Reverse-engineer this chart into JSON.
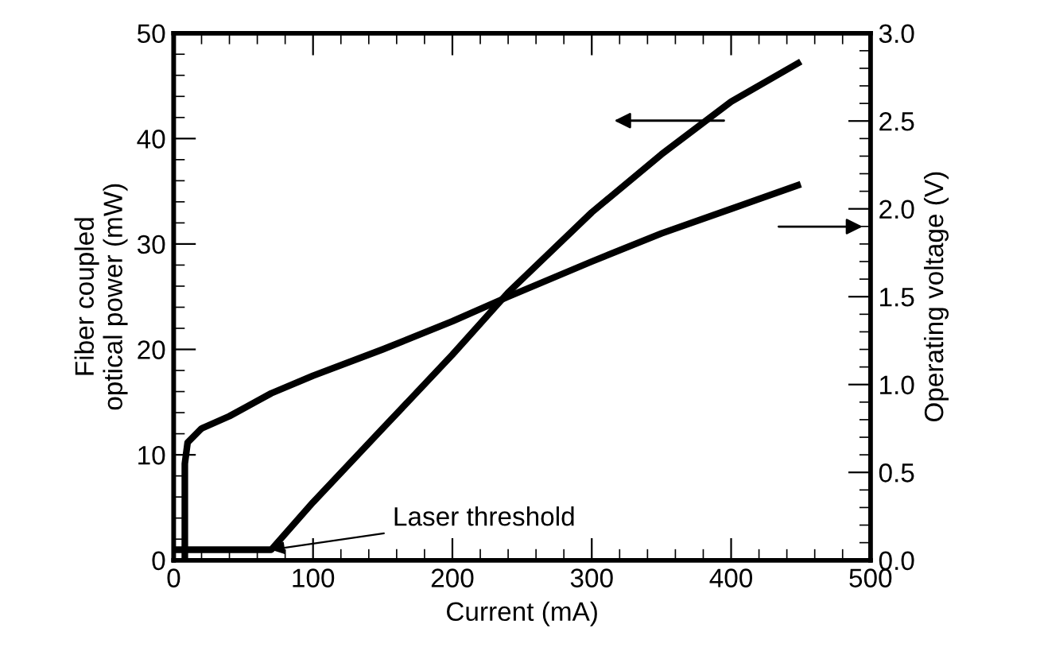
{
  "chart_data": {
    "type": "line",
    "xlabel": "Current (mA)",
    "ylabel": "Fiber coupled\noptical power (mW)",
    "y2label": "Operating voltage (V)",
    "series": [
      {
        "color": "#000000",
        "x": [
          0,
          70,
          100,
          150,
          200,
          240,
          300,
          350,
          400,
          450
        ],
        "values": [
          1,
          1,
          5.5,
          12.5,
          19.5,
          25.4,
          33,
          38.5,
          43.5,
          47.3
        ]
      },
      {
        "color": "#000000",
        "axis": "y2",
        "x": [
          8,
          8,
          10,
          20,
          40,
          70,
          100,
          150,
          200,
          240,
          300,
          350,
          400,
          450
        ],
        "values": [
          0,
          0.55,
          0.67,
          0.75,
          0.82,
          0.95,
          1.05,
          1.2,
          1.36,
          1.5,
          1.7,
          1.86,
          2.0,
          2.14
        ]
      }
    ],
    "xlim": [
      0,
      500
    ],
    "xticks": [
      0,
      100,
      200,
      300,
      400,
      500
    ],
    "ylim": [
      0,
      50
    ],
    "yticks": [
      0,
      10,
      20,
      30,
      40,
      50
    ],
    "y2lim": [
      0,
      3
    ],
    "y2ticks": [
      {
        "value": 0,
        "label": "0.0"
      },
      {
        "value": 0.5,
        "label": "0.5"
      },
      {
        "value": 1,
        "label": "1.0"
      },
      {
        "value": 1.5,
        "label": "1.5"
      },
      {
        "value": 2,
        "label": "2.0"
      },
      {
        "value": 2.5,
        "label": "2.5"
      },
      {
        "value": 3,
        "label": "3.0"
      }
    ],
    "annotations": [
      {
        "text": "Laser threshold",
        "x": 70,
        "y": 1
      }
    ],
    "grid": false,
    "legend": false,
    "marker": "none",
    "line_style": "solid"
  }
}
